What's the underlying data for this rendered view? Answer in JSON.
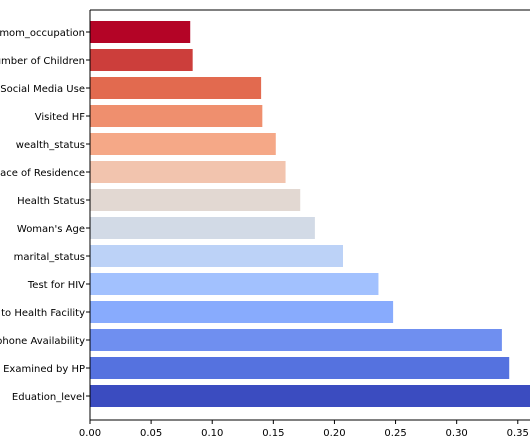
{
  "chart_data": {
    "type": "bar",
    "orientation": "horizontal",
    "title": "",
    "xlabel": "",
    "ylabel": "",
    "xlim": [
      0,
      0.36
    ],
    "x_ticks": [
      "0.00",
      "0.05",
      "0.10",
      "0.15",
      "0.20",
      "0.25",
      "0.30",
      "0.35"
    ],
    "x_tick_values": [
      0,
      0.05,
      0.1,
      0.15,
      0.2,
      0.25,
      0.3,
      0.35
    ],
    "grid": false,
    "legend": "none",
    "colormap": "coolwarm",
    "categories": [
      "mom_occupation",
      "Number of Children",
      "Social Media Use",
      "Visited HF",
      "wealth_status",
      "Place of Residence",
      "Health Status",
      "Woman's Age",
      "marital_status",
      "Test for HIV",
      "Distance to Health Facility",
      "Telephone Availability",
      "Examined by HP",
      "Edu­ation_level"
    ],
    "displayed_labels": [
      "mom_occupation",
      "umber of Children",
      "Social Media Use",
      "Visited HF",
      "wealth_status",
      "lace of Residence",
      "Health Status",
      "Woman's Age",
      "marital_status",
      "Test for HIV",
      "e to Health Facility",
      "phone Availability",
      "Examined by HP",
      "Eduation_level"
    ],
    "values": [
      0.082,
      0.084,
      0.14,
      0.141,
      0.152,
      0.16,
      0.172,
      0.184,
      0.207,
      0.236,
      0.248,
      0.337,
      0.343,
      0.362
    ],
    "colors": [
      "#b40426",
      "#cc3e3b",
      "#e26a4f",
      "#ef8f6e",
      "#f5a887",
      "#f2c4ae",
      "#e2d8d2",
      "#d2dae6",
      "#bcd2f7",
      "#a2c1fe",
      "#88abfd",
      "#6f8ff0",
      "#5572df",
      "#3b4cc0"
    ]
  }
}
